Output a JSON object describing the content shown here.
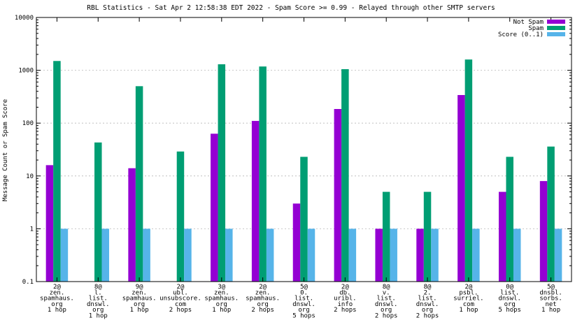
{
  "chart_data": {
    "type": "bar",
    "title": "RBL Statistics - Sat Apr  2 12:58:38 EDT 2022 - Spam Score >= 0.99 - Relayed through other SMTP servers",
    "xlabel": "",
    "ylabel": "Message Count or Spam Score",
    "yscale": "log",
    "ylim": [
      0.1,
      10000
    ],
    "yticks": [
      "0.1",
      "1",
      "10",
      "100",
      "1000",
      "10000"
    ],
    "grid": "horizontal dashed",
    "legend_position": "top-right",
    "categories": [
      [
        "2@",
        "zen.",
        "spamhaus.",
        "org",
        "1 hop"
      ],
      [
        "8@",
        "l.",
        "list.",
        "dnswl.",
        "org",
        "1 hop"
      ],
      [
        "9@",
        "zen.",
        "spamhaus.",
        "org",
        "1 hop"
      ],
      [
        "2@",
        "ubl.",
        "unsubscore.",
        "com",
        "2 hops"
      ],
      [
        "3@",
        "zen.",
        "spamhaus.",
        "org",
        "1 hop"
      ],
      [
        "2@",
        "zen.",
        "spamhaus.",
        "org",
        "2 hops"
      ],
      [
        "5@",
        "0.",
        "list.",
        "dnswl.",
        "org",
        "5 hops"
      ],
      [
        "2@",
        "db.",
        "uribl.",
        "info",
        "2 hops"
      ],
      [
        "8@",
        "v.",
        "list.",
        "dnswl.",
        "org",
        "2 hops"
      ],
      [
        "8@",
        "2.",
        "list.",
        "dnswl.",
        "org",
        "2 hops"
      ],
      [
        "2@",
        "psbl.",
        "surriel.",
        "com",
        "1 hop"
      ],
      [
        "0@",
        "list.",
        "dnswl.",
        "org",
        "5 hops"
      ],
      [
        "5@",
        "dnsbl.",
        "sorbs.",
        "net",
        "1 hop"
      ]
    ],
    "series": [
      {
        "name": "Not Spam",
        "color": "#9400d3",
        "values": [
          16,
          null,
          14,
          null,
          63,
          110,
          3,
          185,
          1,
          1,
          340,
          5,
          8
        ]
      },
      {
        "name": "Spam",
        "color": "#009e73",
        "values": [
          1500,
          43,
          500,
          29,
          1300,
          1180,
          23,
          1050,
          5,
          5,
          1600,
          23,
          36
        ]
      },
      {
        "name": "Score (0..1)",
        "color": "#56b4e9",
        "values": [
          1,
          1,
          1,
          1,
          1,
          1,
          1,
          1,
          1,
          1,
          1,
          1,
          1
        ]
      }
    ]
  }
}
